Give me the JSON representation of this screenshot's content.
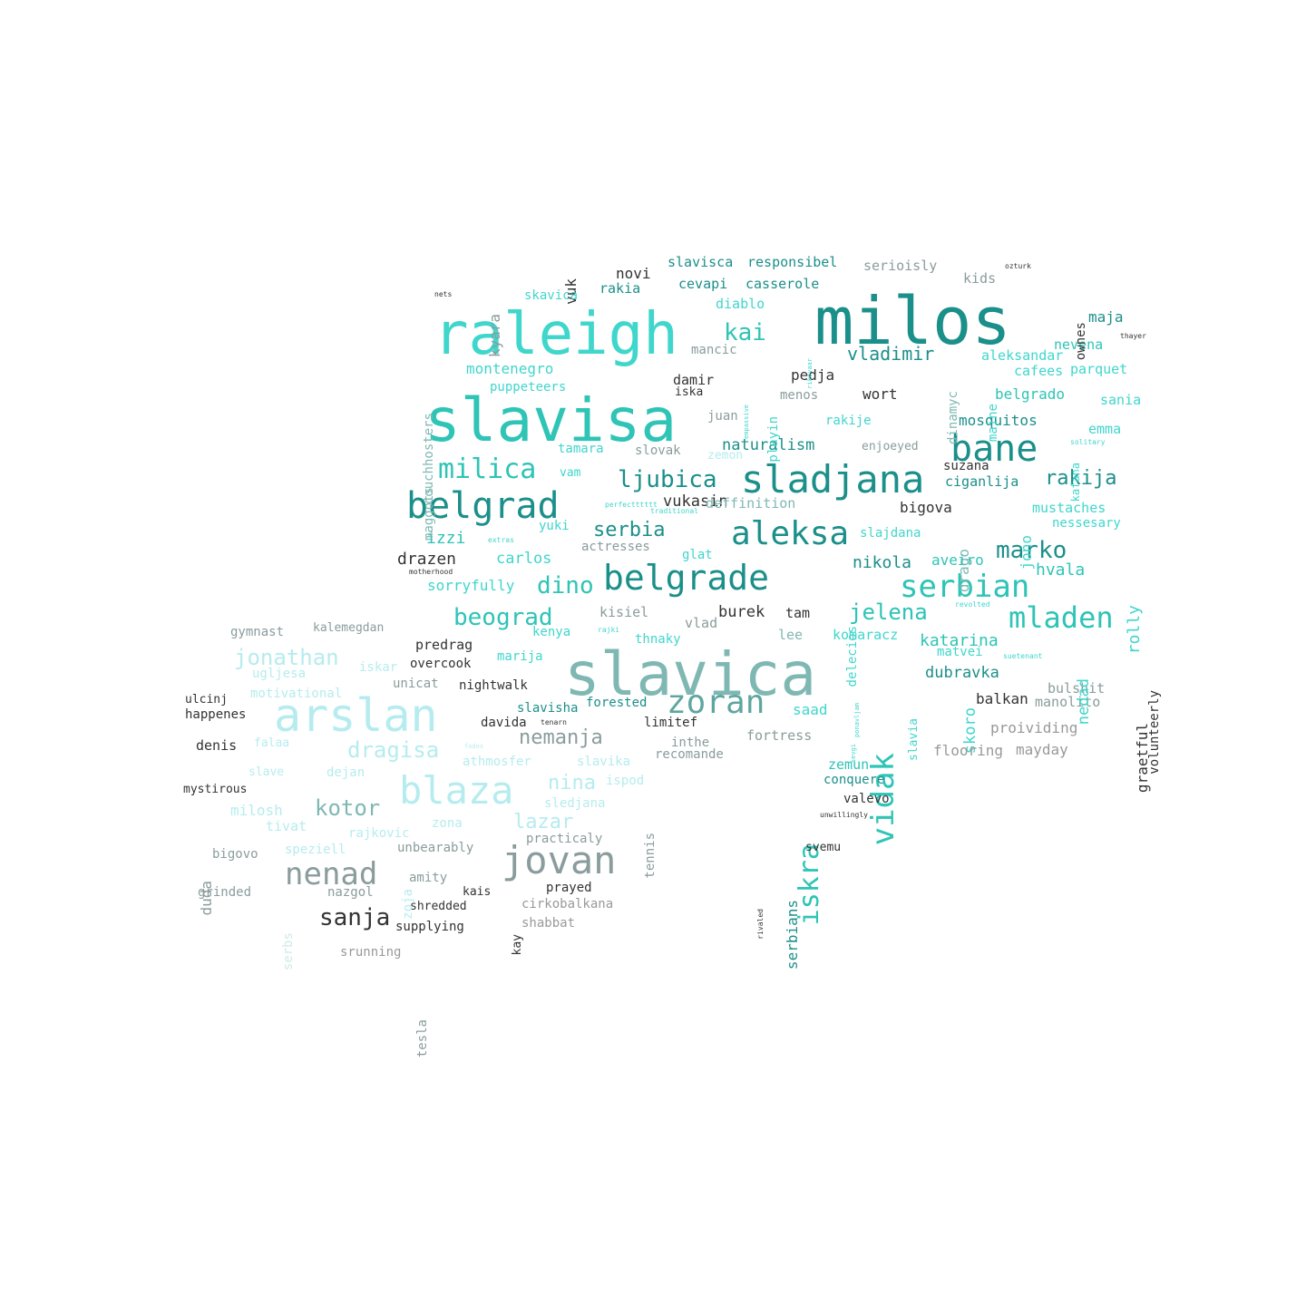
{
  "palette": [
    "#2ec4b6",
    "#3fd6cc",
    "#1b8f8a",
    "#7fb8b3",
    "#b6ecef",
    "#cfe9e9",
    "#8a9c9c",
    "#333333",
    "#999999",
    "#5fa6a0"
  ],
  "words": [
    {
      "text": "milos",
      "c": 2,
      "r": 0
    },
    {
      "text": "raleigh",
      "c": 1,
      "r": 0
    },
    {
      "text": "slavisa",
      "c": 0,
      "r": 0
    },
    {
      "text": "slavica",
      "c": 3,
      "r": 0
    },
    {
      "text": "belgrade",
      "c": 2,
      "r": 0
    },
    {
      "text": "sladjana",
      "c": 2,
      "r": 0
    },
    {
      "text": "belgrad",
      "c": 2,
      "r": 0
    },
    {
      "text": "bane",
      "c": 2,
      "r": 0
    },
    {
      "text": "arslan",
      "c": 4,
      "r": 0
    },
    {
      "text": "blaza",
      "c": 4,
      "r": 0
    },
    {
      "text": "jovan",
      "c": 6,
      "r": 0
    },
    {
      "text": "zoran",
      "c": 9,
      "r": 0
    },
    {
      "text": "nenad",
      "c": 6,
      "r": 0
    },
    {
      "text": "aleksa",
      "c": 2,
      "r": 0
    },
    {
      "text": "serbian",
      "c": 0,
      "r": 0
    },
    {
      "text": "mladen",
      "c": 0,
      "r": 0
    },
    {
      "text": "vidak",
      "c": 0,
      "r": 1
    },
    {
      "text": "iskra",
      "c": 0,
      "r": 1
    },
    {
      "text": "milica",
      "c": 0,
      "r": 0
    },
    {
      "text": "ljubica",
      "c": 2,
      "r": 0
    },
    {
      "text": "kai",
      "c": 0,
      "r": 0
    },
    {
      "text": "vladimir",
      "c": 2,
      "r": 0
    },
    {
      "text": "marko",
      "c": 2,
      "r": 0
    },
    {
      "text": "jelena",
      "c": 0,
      "r": 0
    },
    {
      "text": "dino",
      "c": 0,
      "r": 0
    },
    {
      "text": "beograd",
      "c": 0,
      "r": 0
    },
    {
      "text": "serbia",
      "c": 2,
      "r": 0
    },
    {
      "text": "nemanja",
      "c": 6,
      "r": 0
    },
    {
      "text": "dragisa",
      "c": 4,
      "r": 0
    },
    {
      "text": "kotor",
      "c": 3,
      "r": 0
    },
    {
      "text": "jonathan",
      "c": 4,
      "r": 0
    },
    {
      "text": "sanja",
      "c": 7,
      "r": 0
    },
    {
      "text": "lazar",
      "c": 4,
      "r": 0
    },
    {
      "text": "nina",
      "c": 4,
      "r": 0
    },
    {
      "text": "rakija",
      "c": 2,
      "r": 0
    },
    {
      "text": "katarina",
      "c": 0,
      "r": 0
    },
    {
      "text": "nikola",
      "c": 2,
      "r": 0
    },
    {
      "text": "hvala",
      "c": 0,
      "r": 0
    },
    {
      "text": "dubravka",
      "c": 2,
      "r": 0
    },
    {
      "text": "naturalism",
      "c": 2,
      "r": 0
    },
    {
      "text": "ciganlija",
      "c": 2,
      "r": 0
    },
    {
      "text": "vukasin",
      "c": 7,
      "r": 0
    },
    {
      "text": "deffinition",
      "c": 3,
      "r": 0
    },
    {
      "text": "drazen",
      "c": 7,
      "r": 0
    },
    {
      "text": "izzi",
      "c": 0,
      "r": 0
    },
    {
      "text": "carlos",
      "c": 1,
      "r": 0
    },
    {
      "text": "actresses",
      "c": 6,
      "r": 0
    },
    {
      "text": "sorryfully",
      "c": 1,
      "r": 0
    },
    {
      "text": "kisiel",
      "c": 6,
      "r": 0
    },
    {
      "text": "burek",
      "c": 7,
      "r": 0
    },
    {
      "text": "tam",
      "c": 7,
      "r": 0
    },
    {
      "text": "vlad",
      "c": 6,
      "r": 0
    },
    {
      "text": "lee",
      "c": 3,
      "r": 0
    },
    {
      "text": "komaracz",
      "c": 1,
      "r": 0
    },
    {
      "text": "matvei",
      "c": 1,
      "r": 0
    },
    {
      "text": "balkan",
      "c": 7,
      "r": 0
    },
    {
      "text": "manolito",
      "c": 6,
      "r": 0
    },
    {
      "text": "bulshit",
      "c": 6,
      "r": 0
    },
    {
      "text": "skoro",
      "c": 1,
      "r": 1
    },
    {
      "text": "nedad",
      "c": 1,
      "r": 1
    },
    {
      "text": "graetful",
      "c": 7,
      "r": 1
    },
    {
      "text": "volunteerly",
      "c": 7,
      "r": 1
    },
    {
      "text": "rolly",
      "c": 1,
      "r": 1
    },
    {
      "text": "proividing",
      "c": 8,
      "r": 0
    },
    {
      "text": "flooring",
      "c": 8,
      "r": 0
    },
    {
      "text": "mayday",
      "c": 8,
      "r": 0
    },
    {
      "text": "mustaches",
      "c": 1,
      "r": 0
    },
    {
      "text": "nessesary",
      "c": 1,
      "r": 0
    },
    {
      "text": "drago",
      "c": 3,
      "r": 1
    },
    {
      "text": "jono",
      "c": 1,
      "r": 1
    },
    {
      "text": "aveiro",
      "c": 0,
      "r": 0
    },
    {
      "text": "slajdana",
      "c": 1,
      "r": 0
    },
    {
      "text": "bigova",
      "c": 7,
      "r": 0
    },
    {
      "text": "suzana",
      "c": 7,
      "r": 0
    },
    {
      "text": "mosquitos",
      "c": 2,
      "r": 0
    },
    {
      "text": "emma",
      "c": 1,
      "r": 0
    },
    {
      "text": "belgrado",
      "c": 0,
      "r": 0
    },
    {
      "text": "sania",
      "c": 1,
      "r": 0
    },
    {
      "text": "cafees",
      "c": 1,
      "r": 0
    },
    {
      "text": "parquet",
      "c": 1,
      "r": 0
    },
    {
      "text": "aleksandar",
      "c": 1,
      "r": 0
    },
    {
      "text": "nevena",
      "c": 0,
      "r": 0
    },
    {
      "text": "maja",
      "c": 2,
      "r": 0
    },
    {
      "text": "ownes",
      "c": 7,
      "r": 1
    },
    {
      "text": "kids",
      "c": 6,
      "r": 0
    },
    {
      "text": "serioisly",
      "c": 6,
      "r": 0
    },
    {
      "text": "responsibel",
      "c": 2,
      "r": 0
    },
    {
      "text": "slavisca",
      "c": 2,
      "r": 0
    },
    {
      "text": "casserole",
      "c": 2,
      "r": 0
    },
    {
      "text": "cevapi",
      "c": 2,
      "r": 0
    },
    {
      "text": "novi",
      "c": 7,
      "r": 0
    },
    {
      "text": "rakia",
      "c": 2,
      "r": 0
    },
    {
      "text": "vuk",
      "c": 7,
      "r": 1
    },
    {
      "text": "skavica",
      "c": 1,
      "r": 0
    },
    {
      "text": "kyara",
      "c": 6,
      "r": 1
    },
    {
      "text": "couchhosters",
      "c": 3,
      "r": 1
    },
    {
      "text": "maggots",
      "c": 3,
      "r": 1
    },
    {
      "text": "montenegro",
      "c": 1,
      "r": 0
    },
    {
      "text": "puppeteers",
      "c": 1,
      "r": 0
    },
    {
      "text": "diablo",
      "c": 1,
      "r": 0
    },
    {
      "text": "mancic",
      "c": 6,
      "r": 0
    },
    {
      "text": "damir",
      "c": 7,
      "r": 0
    },
    {
      "text": "iska",
      "c": 7,
      "r": 0
    },
    {
      "text": "juan",
      "c": 6,
      "r": 0
    },
    {
      "text": "tamara",
      "c": 1,
      "r": 0
    },
    {
      "text": "slovak",
      "c": 6,
      "r": 0
    },
    {
      "text": "vam",
      "c": 1,
      "r": 0
    },
    {
      "text": "yuki",
      "c": 1,
      "r": 0
    },
    {
      "text": "playin",
      "c": 1,
      "r": 1
    },
    {
      "text": "menos",
      "c": 6,
      "r": 0
    },
    {
      "text": "pedja",
      "c": 7,
      "r": 0
    },
    {
      "text": "wort",
      "c": 7,
      "r": 0
    },
    {
      "text": "rakije",
      "c": 1,
      "r": 0
    },
    {
      "text": "enjoeyed",
      "c": 6,
      "r": 0
    },
    {
      "text": "dinamyc",
      "c": 3,
      "r": 1
    },
    {
      "text": "maine",
      "c": 1,
      "r": 1
    },
    {
      "text": "kafana",
      "c": 1,
      "r": 1
    },
    {
      "text": "zemon",
      "c": 4,
      "r": 0
    },
    {
      "text": "glat",
      "c": 1,
      "r": 0
    },
    {
      "text": "delecios",
      "c": 1,
      "r": 1
    },
    {
      "text": "slavia",
      "c": 1,
      "r": 1
    },
    {
      "text": "kenya",
      "c": 1,
      "r": 0
    },
    {
      "text": "thnaky",
      "c": 1,
      "r": 0
    },
    {
      "text": "predrag",
      "c": 7,
      "r": 0
    },
    {
      "text": "marija",
      "c": 1,
      "r": 0
    },
    {
      "text": "overcook",
      "c": 7,
      "r": 0
    },
    {
      "text": "unicat",
      "c": 6,
      "r": 0
    },
    {
      "text": "nightwalk",
      "c": 7,
      "r": 0
    },
    {
      "text": "slavisha",
      "c": 2,
      "r": 0
    },
    {
      "text": "davida",
      "c": 7,
      "r": 0
    },
    {
      "text": "forested",
      "c": 2,
      "r": 0
    },
    {
      "text": "limitef",
      "c": 7,
      "r": 0
    },
    {
      "text": "saad",
      "c": 1,
      "r": 0
    },
    {
      "text": "fortress",
      "c": 6,
      "r": 0
    },
    {
      "text": "inthe",
      "c": 6,
      "r": 0
    },
    {
      "text": "recomande",
      "c": 6,
      "r": 0
    },
    {
      "text": "athmosfer",
      "c": 4,
      "r": 0
    },
    {
      "text": "slavika",
      "c": 4,
      "r": 0
    },
    {
      "text": "ispod",
      "c": 4,
      "r": 0
    },
    {
      "text": "sledjana",
      "c": 4,
      "r": 0
    },
    {
      "text": "zemun",
      "c": 0,
      "r": 0
    },
    {
      "text": "conquere",
      "c": 2,
      "r": 0
    },
    {
      "text": "valevo",
      "c": 7,
      "r": 0
    },
    {
      "text": "svemu",
      "c": 7,
      "r": 0
    },
    {
      "text": "serbians",
      "c": 2,
      "r": 1
    },
    {
      "text": "tennis",
      "c": 6,
      "r": 1
    },
    {
      "text": "practicaly",
      "c": 6,
      "r": 0
    },
    {
      "text": "unbearably",
      "c": 6,
      "r": 0
    },
    {
      "text": "zona",
      "c": 4,
      "r": 0
    },
    {
      "text": "rajkovic",
      "c": 4,
      "r": 0
    },
    {
      "text": "amity",
      "c": 6,
      "r": 0
    },
    {
      "text": "kais",
      "c": 7,
      "r": 0
    },
    {
      "text": "prayed",
      "c": 7,
      "r": 0
    },
    {
      "text": "cirkobalkana",
      "c": 8,
      "r": 0
    },
    {
      "text": "shredded",
      "c": 7,
      "r": 0
    },
    {
      "text": "supplying",
      "c": 7,
      "r": 0
    },
    {
      "text": "kay",
      "c": 7,
      "r": 1
    },
    {
      "text": "shabbat",
      "c": 8,
      "r": 0
    },
    {
      "text": "nazgol",
      "c": 6,
      "r": 0
    },
    {
      "text": "zoja",
      "c": 4,
      "r": 1
    },
    {
      "text": "srunning",
      "c": 8,
      "r": 0
    },
    {
      "text": "tesla",
      "c": 6,
      "r": 1
    },
    {
      "text": "serbs",
      "c": 5,
      "r": 1
    },
    {
      "text": "grinded",
      "c": 6,
      "r": 0
    },
    {
      "text": "bigovo",
      "c": 6,
      "r": 0
    },
    {
      "text": "speziell",
      "c": 4,
      "r": 0
    },
    {
      "text": "duda",
      "c": 6,
      "r": 1
    },
    {
      "text": "tivat",
      "c": 4,
      "r": 0
    },
    {
      "text": "milosh",
      "c": 4,
      "r": 0
    },
    {
      "text": "mystirous",
      "c": 7,
      "r": 0
    },
    {
      "text": "slave",
      "c": 4,
      "r": 0
    },
    {
      "text": "dejan",
      "c": 4,
      "r": 0
    },
    {
      "text": "falaa",
      "c": 4,
      "r": 0
    },
    {
      "text": "denis",
      "c": 7,
      "r": 0
    },
    {
      "text": "ulcinj",
      "c": 7,
      "r": 0
    },
    {
      "text": "happenes",
      "c": 7,
      "r": 0
    },
    {
      "text": "motivational",
      "c": 4,
      "r": 0
    },
    {
      "text": "ugljesa",
      "c": 4,
      "r": 0
    },
    {
      "text": "iskar",
      "c": 4,
      "r": 0
    },
    {
      "text": "gymnast",
      "c": 6,
      "r": 0
    },
    {
      "text": "kalemegdan",
      "c": 6,
      "r": 0
    },
    {
      "text": "nets",
      "c": 7,
      "r": 0
    },
    {
      "text": "ozturk",
      "c": 7,
      "r": 0
    },
    {
      "text": "thayer",
      "c": 7,
      "r": 0
    },
    {
      "text": "solitary",
      "c": 1,
      "r": 0
    },
    {
      "text": "perfectttttt",
      "c": 1,
      "r": 0
    },
    {
      "text": "traditional",
      "c": 1,
      "r": 0
    },
    {
      "text": "extras",
      "c": 1,
      "r": 0
    },
    {
      "text": "motherhood",
      "c": 7,
      "r": 0
    },
    {
      "text": "revolted",
      "c": 1,
      "r": 0
    },
    {
      "text": "suetenant",
      "c": 1,
      "r": 0
    },
    {
      "text": "unwillingly",
      "c": 7,
      "r": 0
    },
    {
      "text": "rivaled",
      "c": 7,
      "r": 1
    },
    {
      "text": "rajki",
      "c": 1,
      "r": 0
    },
    {
      "text": "tenarn",
      "c": 7,
      "r": 0
    },
    {
      "text": "ponavljam",
      "c": 1,
      "r": 1
    },
    {
      "text": "sevgi",
      "c": 1,
      "r": 1
    },
    {
      "text": "empassive",
      "c": 1,
      "r": 1
    },
    {
      "text": "rikovaar",
      "c": 1,
      "r": 1
    },
    {
      "text": "fodes",
      "c": 4,
      "r": 0
    }
  ]
}
